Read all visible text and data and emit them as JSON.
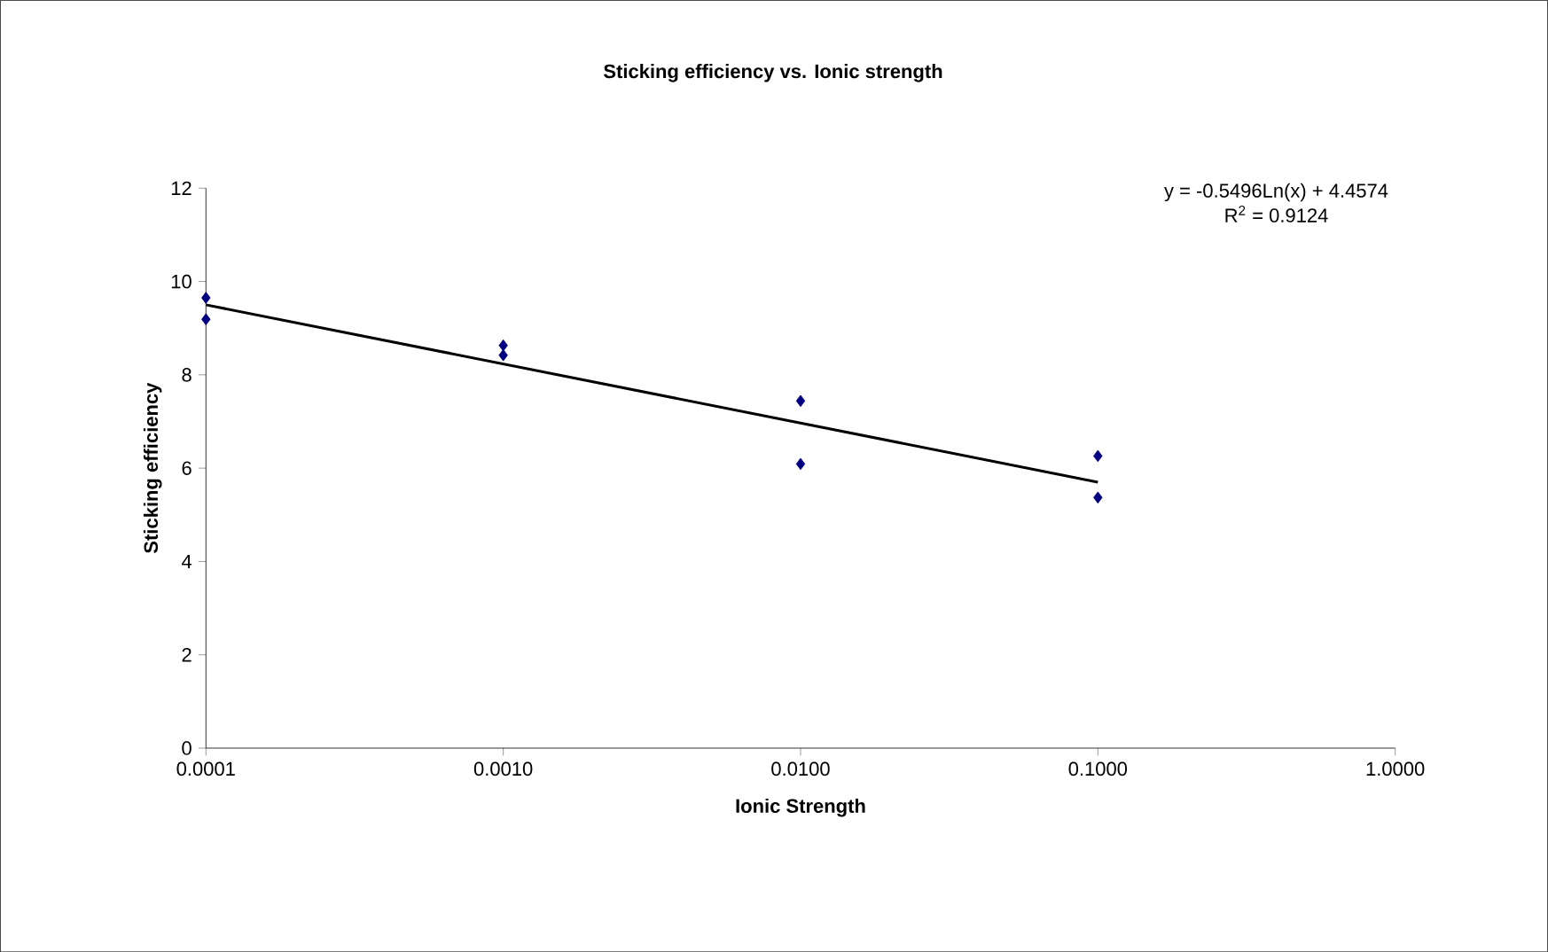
{
  "chart_data": {
    "type": "scatter",
    "title": "Sticking efficiency vs. Ionic strength",
    "xlabel": "Ionic Strength",
    "ylabel": "Sticking efficiency",
    "log": "x",
    "xlim": [
      0.0001,
      1
    ],
    "ylim": [
      0,
      12
    ],
    "xticks": [
      {
        "value": 0.0001,
        "label": "0.0001"
      },
      {
        "value": 0.001,
        "label": "0.0010"
      },
      {
        "value": 0.01,
        "label": "0.0100"
      },
      {
        "value": 0.1,
        "label": "0.1000"
      },
      {
        "value": 1,
        "label": "1.0000"
      }
    ],
    "yticks": [
      0,
      2,
      4,
      6,
      8,
      10,
      12
    ],
    "grid": false,
    "annotations": [
      "y = -0.5496Ln(x) + 4.4574",
      "R$^{2}$ = 0.9124"
    ],
    "series": [
      {
        "marker": "diamond",
        "color": "#000080",
        "x": [
          0.0001,
          0.0001,
          0.001,
          0.001,
          0.01,
          0.01,
          0.1,
          0.1
        ],
        "values": [
          9.65,
          9.19,
          8.63,
          8.42,
          7.44,
          6.09,
          6.26,
          5.37
        ]
      },
      {
        "type": "line",
        "marker": "none",
        "color": "#000000",
        "line_style": "solid",
        "x": [
          0.0001,
          0.1
        ],
        "values": [
          9.5,
          5.7
        ]
      }
    ]
  }
}
